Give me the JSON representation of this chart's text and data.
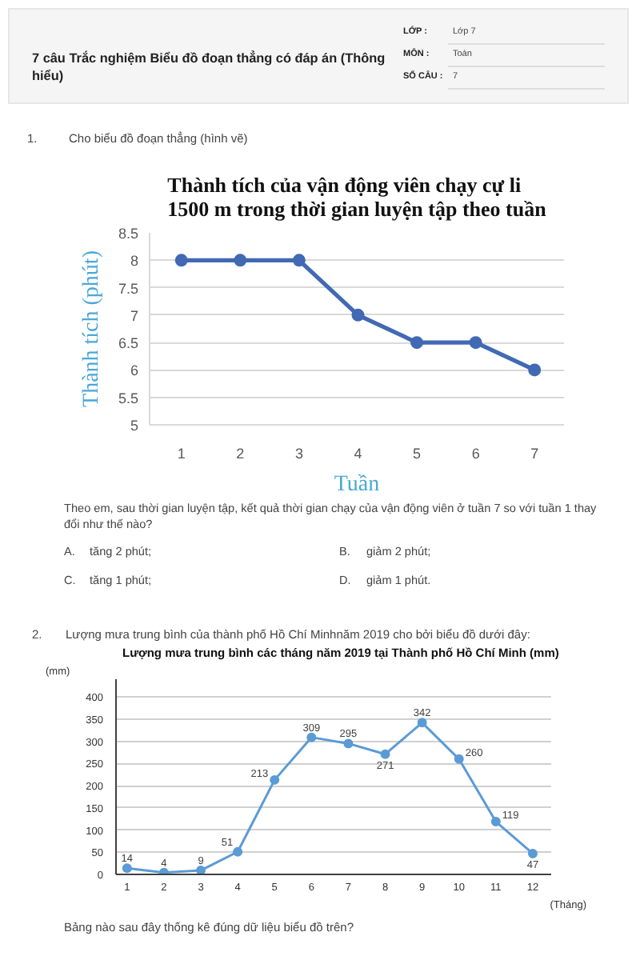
{
  "chart_data": [
    {
      "type": "line",
      "title": "Thành tích của vận động viên chạy cự li 1500 m trong thời gian luyện tập theo tuần",
      "xlabel": "Tuần",
      "ylabel": "Thành tích (phút)",
      "categories": [
        "1",
        "2",
        "3",
        "4",
        "5",
        "6",
        "7"
      ],
      "values": [
        8,
        8,
        8,
        7,
        6.5,
        6.5,
        6
      ],
      "color": "#4169b4",
      "ylim": [
        5,
        8.5
      ],
      "yticks": [
        5,
        5.5,
        6,
        6.5,
        7,
        7.5,
        8,
        8.5
      ],
      "grid": "y",
      "marker": "circle",
      "annotations": [
        "7 câu Trắc nghiệm Biểu đồ đoạn thẳng có đáp án (Thông hiểu)",
        "LỚP :",
        "Lớp 7",
        "MÔN :",
        "Toán",
        "SỐ CÂU :",
        "7",
        "1.",
        "Cho biểu đồ đoạn thẳng (hình vẽ)",
        "Theo em, sau thời gian luyện tập, kết quả thời gian chạy của vận động viên ở tuần 7 so với tuần 1 thay đổi như thế nào?",
        "A.",
        "tăng 2 phút;",
        "B.",
        "giảm 2 phút;",
        "C.",
        "tăng 1 phút;",
        "D.",
        "giảm 1 phút."
      ]
    },
    {
      "type": "line",
      "title": "Lượng mưa trung bình các tháng năm 2019 tại Thành phố Hồ Chí Minh (mm)",
      "xlabel": "(Tháng)",
      "ylabel": "(mm)",
      "x": [
        1,
        2,
        3,
        4,
        5,
        6,
        7,
        8,
        9,
        10,
        11,
        12
      ],
      "values": [
        14,
        4,
        9,
        51,
        213,
        309,
        295,
        271,
        342,
        260,
        119,
        47
      ],
      "color": "#5b9bd5",
      "xlim": [
        0.7,
        12.5
      ],
      "xticks": [
        1,
        2,
        3,
        4,
        5,
        6,
        7,
        8,
        9,
        10,
        11,
        12
      ],
      "ylim": [
        0,
        440
      ],
      "yticks": [
        0,
        50,
        100,
        150,
        200,
        250,
        300,
        350,
        400
      ],
      "grid": "y",
      "marker": "circle",
      "data_labels": true,
      "annotations": [
        "2.",
        "Lượng mưa trung bình của thành phố Hồ Chí Minhnăm 2019 cho bởi biểu đồ dưới đây:",
        "Bảng nào sau đây thống kê đúng dữ liệu biểu đồ trên?"
      ]
    }
  ]
}
